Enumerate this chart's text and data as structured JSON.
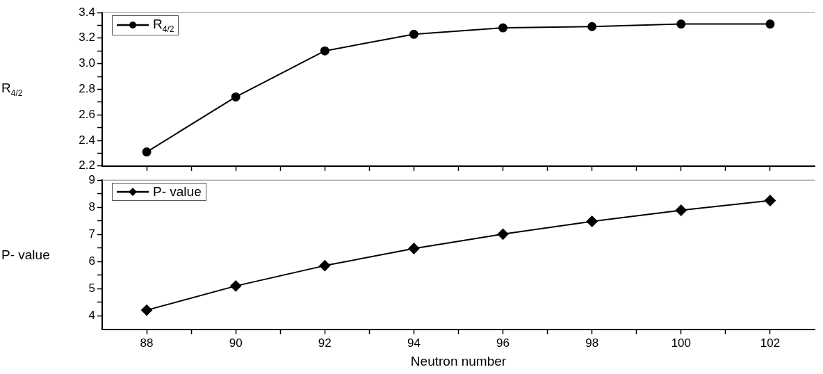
{
  "chart_data": [
    {
      "type": "line",
      "ylabel": "R$_{4/2}$",
      "x": [
        88,
        90,
        92,
        94,
        96,
        98,
        100,
        102
      ],
      "series": [
        {
          "name": "R$_{4/2}$",
          "color": "#000000",
          "values": [
            2.31,
            2.74,
            3.1,
            3.23,
            3.28,
            3.29,
            3.31,
            3.31
          ]
        }
      ],
      "xlim": [
        87,
        103
      ],
      "xticks": [
        {
          "value": 88,
          "label": null
        },
        {
          "value": 89,
          "label": null
        },
        {
          "value": 90,
          "label": null
        },
        {
          "value": 91,
          "label": null
        },
        {
          "value": 92,
          "label": null
        },
        {
          "value": 93,
          "label": null
        },
        {
          "value": 94,
          "label": null
        },
        {
          "value": 95,
          "label": null
        },
        {
          "value": 96,
          "label": null
        },
        {
          "value": 97,
          "label": null
        },
        {
          "value": 98,
          "label": null
        },
        {
          "value": 99,
          "label": null
        },
        {
          "value": 100,
          "label": null
        },
        {
          "value": 101,
          "label": null
        },
        {
          "value": 102,
          "label": null
        }
      ],
      "ylim": [
        2.2,
        3.4
      ],
      "yticks": [
        {
          "value": 2.2,
          "label": "2.2"
        },
        {
          "value": 2.3,
          "label": null
        },
        {
          "value": 2.4,
          "label": "2.4"
        },
        {
          "value": 2.5,
          "label": null
        },
        {
          "value": 2.6,
          "label": "2.6"
        },
        {
          "value": 2.7,
          "label": null
        },
        {
          "value": 2.8,
          "label": "2.8"
        },
        {
          "value": 2.9,
          "label": null
        },
        {
          "value": 3.0,
          "label": "3.0"
        },
        {
          "value": 3.1,
          "label": null
        },
        {
          "value": 3.2,
          "label": "3.2"
        },
        {
          "value": 3.3,
          "label": null
        },
        {
          "value": 3.4,
          "label": "3.4"
        }
      ],
      "tick_labels": "y",
      "marker": "circle",
      "line_style": "solid",
      "legend": "top left"
    },
    {
      "type": "line",
      "xlabel": "Neutron number",
      "ylabel": "P- value",
      "x": [
        88,
        90,
        92,
        94,
        96,
        98,
        100,
        102
      ],
      "series": [
        {
          "name": "P- value",
          "color": "#000000",
          "values": [
            4.21,
            5.1,
            5.85,
            6.48,
            7.01,
            7.48,
            7.89,
            8.25
          ]
        }
      ],
      "xlim": [
        87,
        103
      ],
      "xticks": [
        88,
        {
          "value": 89,
          "label": null
        },
        90,
        {
          "value": 91,
          "label": null
        },
        92,
        {
          "value": 93,
          "label": null
        },
        94,
        {
          "value": 95,
          "label": null
        },
        96,
        {
          "value": 97,
          "label": null
        },
        98,
        {
          "value": 99,
          "label": null
        },
        100,
        {
          "value": 101,
          "label": null
        },
        102
      ],
      "ylim": [
        3.5,
        9
      ],
      "yticks": [
        4,
        {
          "value": 4.5,
          "label": null
        },
        5,
        {
          "value": 5.5,
          "label": null
        },
        6,
        {
          "value": 6.5,
          "label": null
        },
        7,
        {
          "value": 7.5,
          "label": null
        },
        8,
        {
          "value": 8.5,
          "label": null
        },
        9
      ],
      "marker": "diamond",
      "line_style": "solid",
      "legend": "top left"
    }
  ]
}
